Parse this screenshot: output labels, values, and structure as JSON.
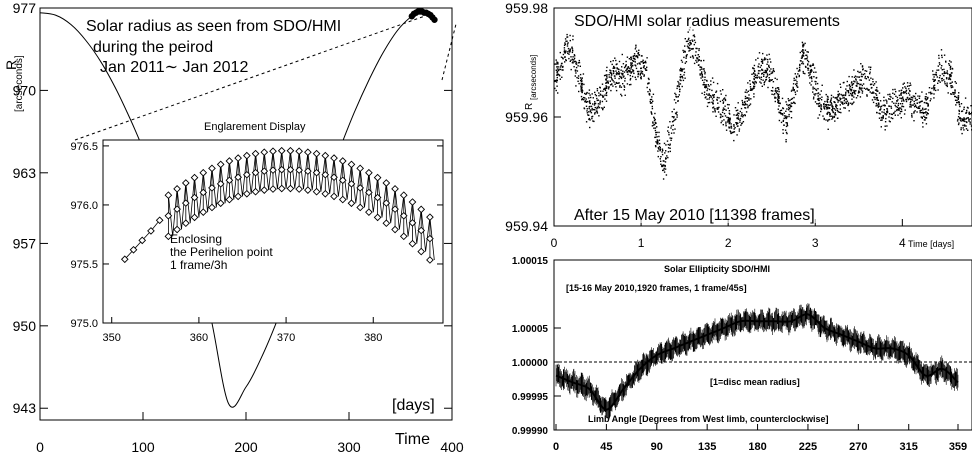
{
  "chart_data": [
    {
      "type": "line",
      "title": "Solar radius as seen from SDO/HMI",
      "subtitle_lines": [
        "during the peirod",
        "Jan 2011∼ Jan 2012"
      ],
      "ylabel": "R",
      "ylabel_unit": "[arcseconds]",
      "xlabel_lines": [
        "[days]",
        "Time"
      ],
      "xlim": [
        0,
        400
      ],
      "ylim": [
        942,
        977
      ],
      "x_ticks": [
        0,
        100,
        200,
        300,
        400
      ],
      "y_ticks": [
        943,
        950,
        957,
        963,
        970,
        977
      ],
      "grid": false,
      "series": [
        {
          "style": "solid-curve",
          "x": [
            0,
            15,
            30,
            45,
            60,
            75,
            90,
            105,
            120,
            135,
            150,
            165,
            183,
            200,
            215,
            230,
            245,
            260,
            275,
            290,
            305,
            320,
            335,
            350,
            367,
            380,
            385
          ],
          "y": [
            976.6,
            976.4,
            975.6,
            974.2,
            972.3,
            969.9,
            967.1,
            964.0,
            960.7,
            957.4,
            954.0,
            951.0,
            943.4,
            944.8,
            947.3,
            950.4,
            953.9,
            957.6,
            961.3,
            964.8,
            968.1,
            971.0,
            973.5,
            975.4,
            976.6,
            976.4,
            976.0
          ]
        }
      ],
      "highlight_points": {
        "x": [
          361,
          363,
          365,
          367,
          369,
          371,
          373,
          375,
          377,
          379,
          381,
          383
        ],
        "y": [
          976.3,
          976.5,
          976.6,
          976.7,
          976.7,
          976.7,
          976.6,
          976.6,
          976.5,
          976.4,
          976.2,
          976.0
        ]
      },
      "inset": {
        "title": "Englarement Display",
        "annotation_lines": [
          "Enclosing",
          "the Perihelion point",
          "1 frame/3h"
        ],
        "xlim": [
          349,
          388
        ],
        "ylim": [
          975,
          976.55
        ],
        "x_ticks": [
          350,
          360,
          370,
          380
        ],
        "y_ticks": [
          975.0,
          975.5,
          976.0,
          976.5
        ],
        "y_tick_labels": [
          "975.0",
          "975.5",
          "976.0",
          "976.5"
        ],
        "series": [
          {
            "name": "diamond markers",
            "x_start": 351.5,
            "x_end": 386.5,
            "early_x": [
              351.5,
              352.5,
              353.5,
              354.5,
              355.5
            ],
            "early_y": [
              975.54,
              975.62,
              975.7,
              975.78,
              975.87
            ],
            "upper_peak": 976.46,
            "upper_end": 975.93,
            "lower_peak": 976.14,
            "lower_end": 975.57
          }
        ]
      }
    },
    {
      "type": "scatter",
      "title": "SDO/HMI solar radius measurements",
      "annotation": "After 15 May 2010 [11398 frames]",
      "ylabel": "R",
      "ylabel_unit": "[arcseconds]",
      "xlabel": "Time [days]",
      "xlim": [
        0,
        4.8
      ],
      "ylim": [
        959.94,
        959.98
      ],
      "x_ticks": [
        0,
        1,
        2,
        3,
        4
      ],
      "y_ticks": [
        959.94,
        959.96,
        959.98
      ],
      "y_tick_labels": [
        "959.94",
        "959.96",
        "959.98"
      ],
      "grid": false,
      "series": [
        {
          "name": "radius",
          "x": [
            0.05,
            0.15,
            0.25,
            0.35,
            0.45,
            0.55,
            0.65,
            0.75,
            0.85,
            0.95,
            1.05,
            1.15,
            1.25,
            1.35,
            1.45,
            1.55,
            1.65,
            1.75,
            1.85,
            1.95,
            2.05,
            2.15,
            2.25,
            2.35,
            2.45,
            2.55,
            2.65,
            2.75,
            2.85,
            2.95,
            3.05,
            3.15,
            3.25,
            3.35,
            3.45,
            3.55,
            3.65,
            3.75,
            3.85,
            3.95,
            4.05,
            4.15,
            4.25,
            4.35,
            4.45,
            4.55,
            4.65,
            4.75
          ],
          "y": [
            959.967,
            959.969,
            959.966,
            959.963,
            959.965,
            959.968,
            959.97,
            959.966,
            959.964,
            959.967,
            959.969,
            959.962,
            959.955,
            959.96,
            959.966,
            959.97,
            959.968,
            959.965,
            959.967,
            959.966,
            959.96,
            959.958,
            959.961,
            959.966,
            959.969,
            959.968,
            959.963,
            959.966,
            959.97,
            959.964,
            959.959,
            959.962,
            959.966,
            959.968,
            959.967,
            959.965,
            959.962,
            959.958,
            959.962,
            959.966,
            959.968,
            959.964,
            959.959,
            959.962,
            959.966,
            959.968,
            959.965,
            959.963
          ],
          "spread": 0.0045
        }
      ]
    },
    {
      "type": "line",
      "title": "Solar Ellipticity SDO/HMI",
      "subtitle": "[15-16 May 2010,1920 frames, 1 frame/45s]",
      "annotation": "[1=disc mean radius]",
      "xlabel": "Limb Angle [Degrees from West limb, counterclockwise]",
      "xlim": [
        0,
        359
      ],
      "ylim": [
        0.9999,
        1.00015
      ],
      "x_ticks": [
        0,
        45,
        90,
        135,
        180,
        225,
        270,
        315,
        359
      ],
      "y_ticks": [
        0.9999,
        0.99995,
        1.0,
        1.00005,
        1.00015
      ],
      "y_tick_labels": [
        "0.99990",
        "0.99995",
        "1.00000",
        "1.00005",
        "1.00015"
      ],
      "reference_line": 1.0,
      "grid": false,
      "series": [
        {
          "name": "ellipticity",
          "x": [
            0,
            15,
            30,
            45,
            60,
            75,
            90,
            105,
            120,
            135,
            150,
            165,
            180,
            195,
            210,
            225,
            240,
            255,
            270,
            285,
            300,
            315,
            330,
            345,
            359
          ],
          "y": [
            0.99998,
            0.99997,
            0.99996,
            0.99993,
            0.99996,
            0.99999,
            1.00001,
            1.00002,
            1.00003,
            1.00004,
            1.00005,
            1.00006,
            1.00006,
            1.00006,
            1.00006,
            1.00007,
            1.00005,
            1.00004,
            1.00003,
            1.00002,
            1.00002,
            1.00001,
            0.99998,
            0.99999,
            0.99997
          ],
          "error_half_width": 1.2e-05
        }
      ]
    }
  ]
}
